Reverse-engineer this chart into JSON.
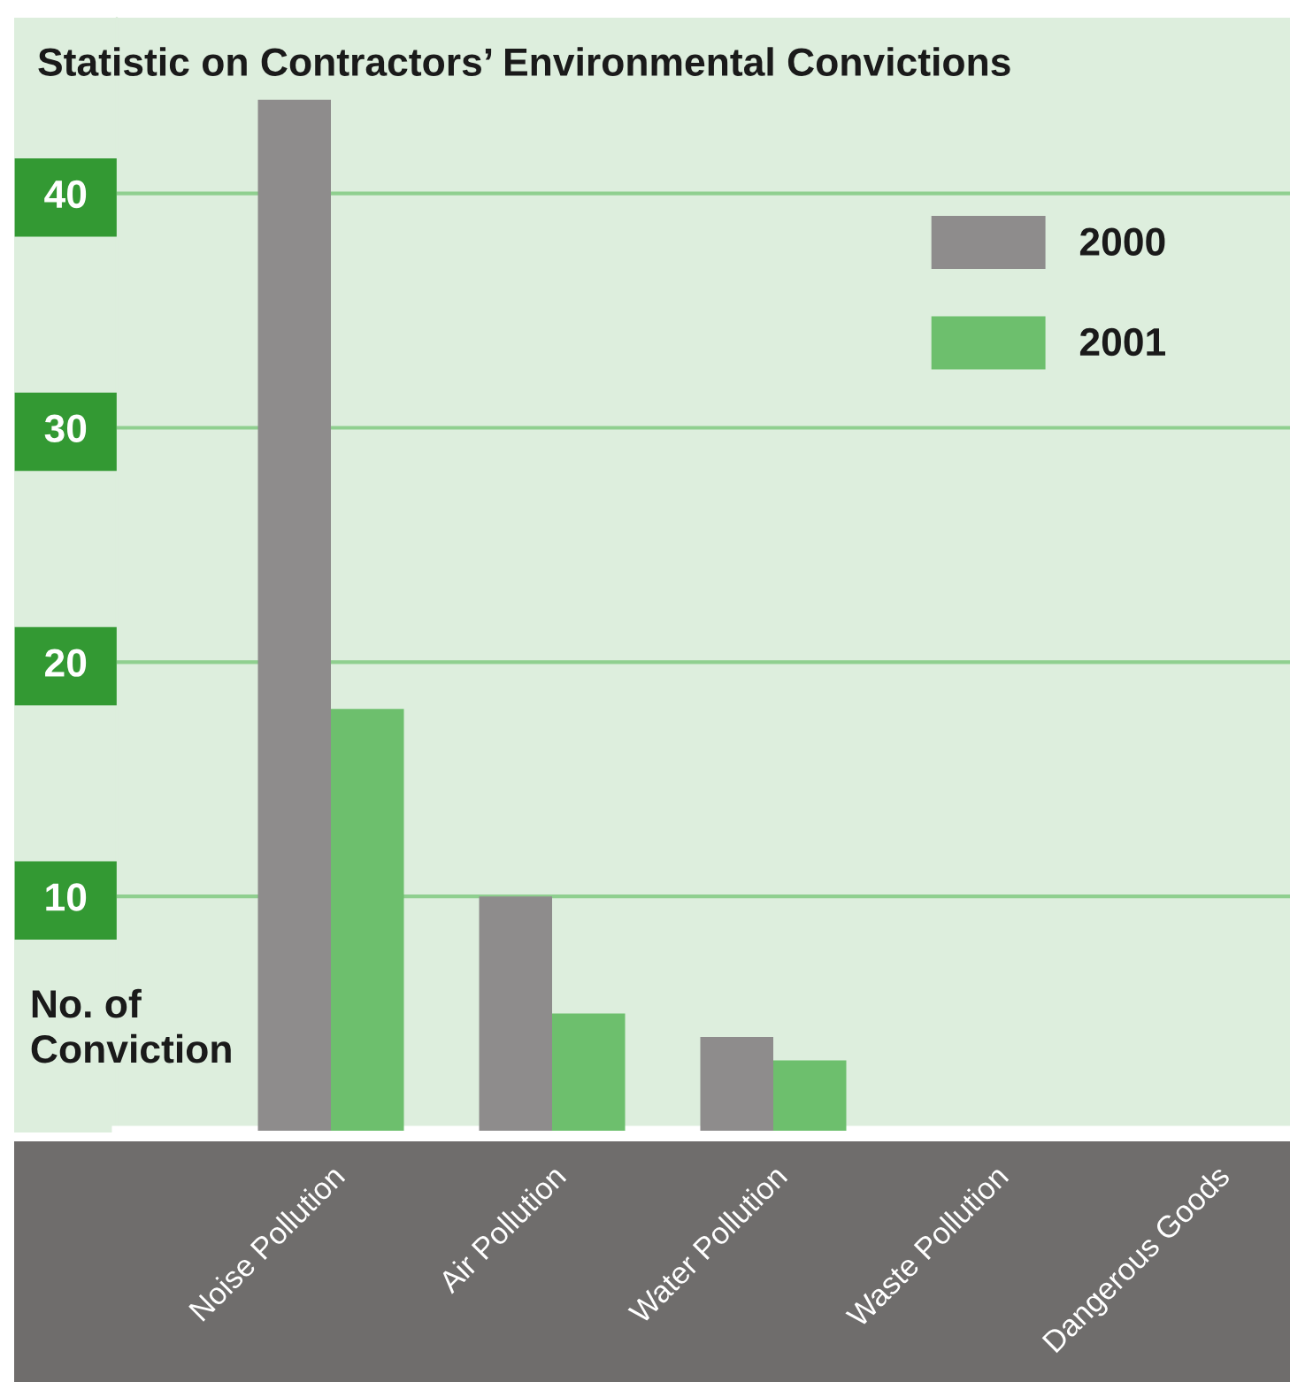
{
  "chart_data": {
    "type": "bar",
    "title": "Statistic on Contractors’ Environmental Convictions",
    "ylabel": "No. of\nConviction",
    "categories": [
      "Noise Pollution",
      "Air Pollution",
      "Water Pollution",
      "Waste Pollution",
      "Dangerous Goods"
    ],
    "series": [
      {
        "name": "2000",
        "color": "#8e8c8c",
        "values": [
          44,
          10,
          4,
          0,
          0
        ]
      },
      {
        "name": "2001",
        "color": "#6dbf6d",
        "values": [
          18,
          5,
          3,
          0,
          0
        ]
      }
    ],
    "ylim": [
      0,
      47.5
    ],
    "yticks": [
      10,
      20,
      30,
      40
    ],
    "grid": "y",
    "legend": "top right"
  }
}
